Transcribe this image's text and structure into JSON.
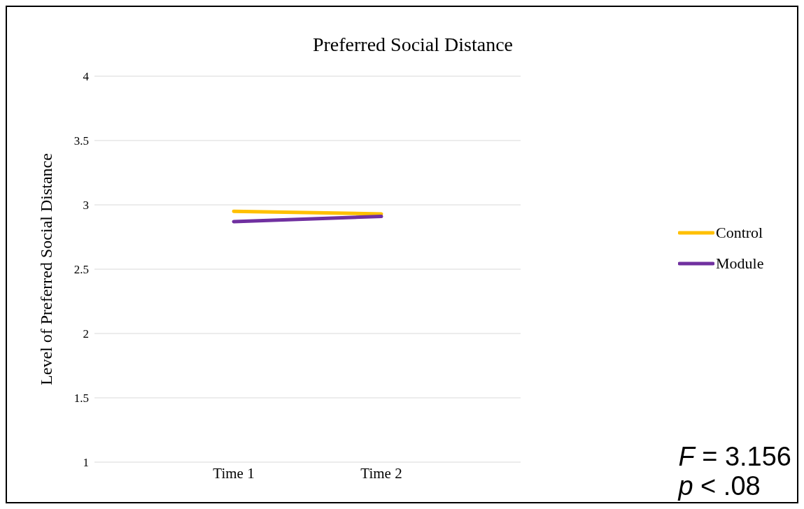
{
  "chart_data": {
    "type": "line",
    "title": "Preferred Social Distance",
    "ylabel": "Level of Preferred Social Distance",
    "categories": [
      "Time 1",
      "Time 2"
    ],
    "series": [
      {
        "name": "Control",
        "color": "#ffc000",
        "values": [
          2.95,
          2.93
        ]
      },
      {
        "name": "Module",
        "color": "#7030a0",
        "values": [
          2.87,
          2.91
        ]
      }
    ],
    "ylim": [
      1,
      4
    ],
    "yticks": [
      1,
      1.5,
      2,
      2.5,
      3,
      3.5,
      4
    ],
    "grid": "y",
    "legend": "right",
    "marker": "none",
    "line_style": "solid",
    "annotations": [
      "F = 3.156",
      "p < .08"
    ]
  }
}
